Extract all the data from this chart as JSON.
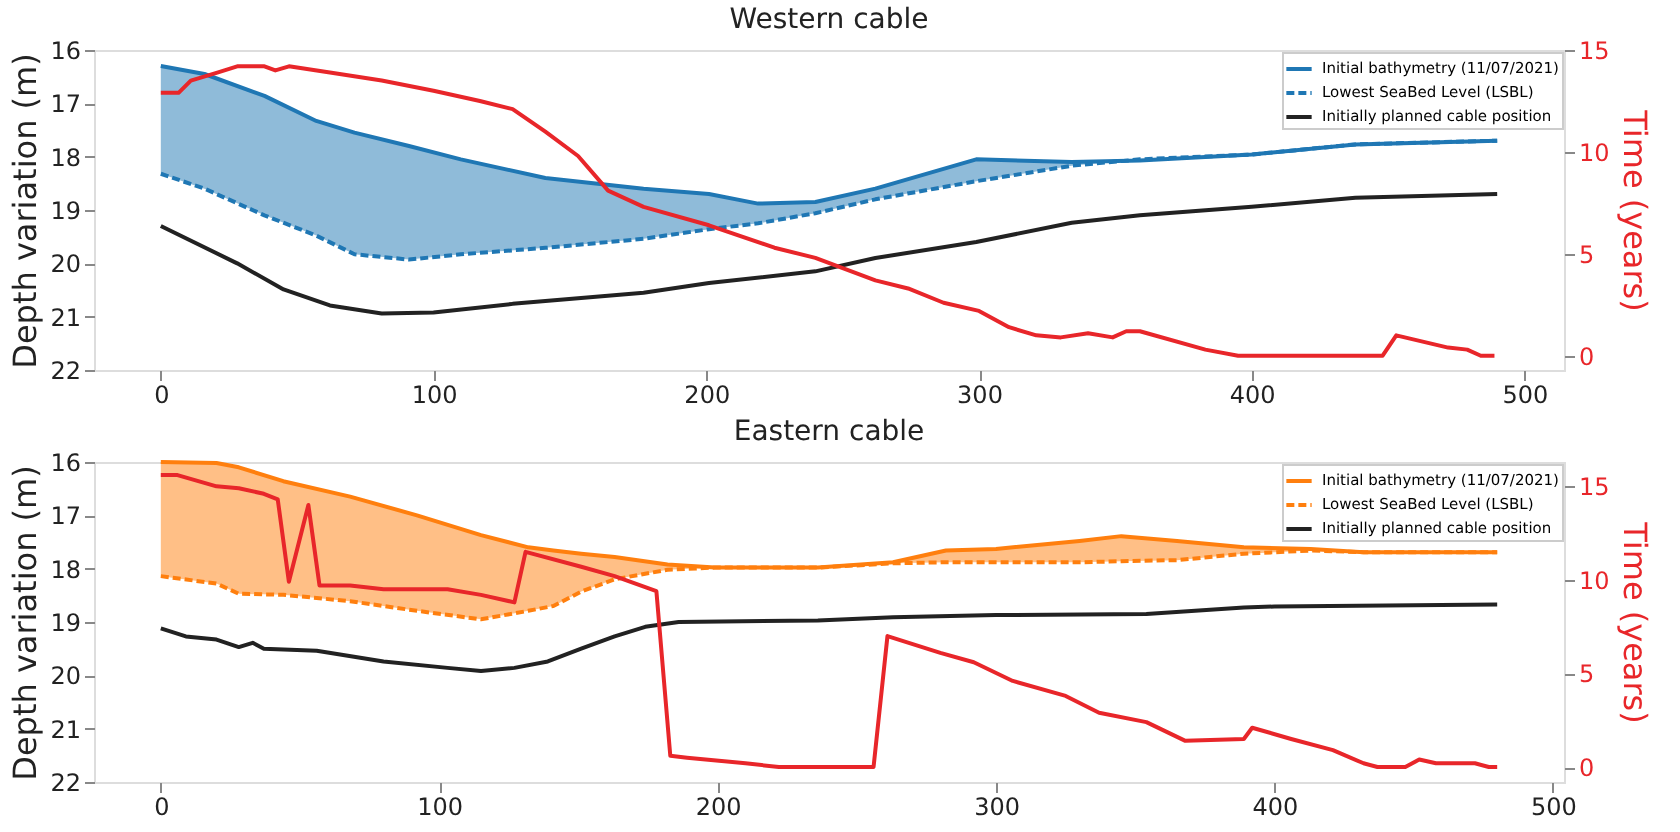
{
  "chart_data": [
    {
      "type": "line",
      "title": "Western cable",
      "ylabel": "Depth variation (m)",
      "y2label": "Time (years)",
      "xlim": [
        -24.5,
        514.5
      ],
      "xticks": [
        0,
        100,
        200,
        300,
        400,
        500
      ],
      "ylim": [
        22,
        16
      ],
      "yticks": [
        16,
        17,
        18,
        19,
        20,
        21,
        22
      ],
      "y2lim": [
        -0.7,
        15.0
      ],
      "y2ticks": [
        0,
        5,
        10,
        15
      ],
      "legend": "top right",
      "grid": false,
      "series": [
        {
          "name": "Initial bathymetry (11/07/2021)",
          "color": "#1f77b4",
          "line_style": "solid",
          "x": [
            0,
            16,
            38,
            57,
            71,
            91,
            110,
            141,
            177,
            201,
            219,
            240,
            262,
            299,
            334,
            359,
            400,
            438,
            490
          ],
          "values": [
            16.3,
            16.45,
            16.86,
            17.33,
            17.55,
            17.8,
            18.05,
            18.4,
            18.6,
            18.7,
            18.88,
            18.85,
            18.6,
            18.05,
            18.1,
            18.07,
            17.96,
            17.77,
            17.7
          ],
          "lower": [
            18.32,
            18.6,
            19.1,
            19.48,
            19.83,
            19.93,
            19.83,
            19.71,
            19.54,
            19.36,
            19.25,
            19.06,
            18.8,
            18.46,
            18.17,
            18.05,
            17.96,
            17.77,
            17.7
          ],
          "upper": [
            16.3,
            16.45,
            16.86,
            17.33,
            17.55,
            17.8,
            18.05,
            18.4,
            18.6,
            18.7,
            18.88,
            18.85,
            18.6,
            18.05,
            18.1,
            18.07,
            17.96,
            17.77,
            17.7
          ]
        },
        {
          "name": "Lowest SeaBed Level (LSBL)",
          "color": "#1f77b4",
          "line_style": "dashed",
          "x": [
            0,
            16,
            38,
            57,
            71,
            91,
            110,
            141,
            177,
            201,
            219,
            240,
            262,
            299,
            334,
            359,
            400,
            438,
            490
          ],
          "values": [
            18.32,
            18.6,
            19.1,
            19.48,
            19.83,
            19.93,
            19.83,
            19.71,
            19.54,
            19.36,
            19.25,
            19.06,
            18.8,
            18.46,
            18.17,
            18.05,
            17.96,
            17.77,
            17.7
          ]
        },
        {
          "name": "Initially planned cable position",
          "color": "#222222",
          "line_style": "solid",
          "x": [
            0,
            28,
            45,
            62,
            81,
            100,
            129,
            177,
            201,
            240,
            262,
            299,
            334,
            359,
            400,
            438,
            490
          ],
          "values": [
            19.3,
            20.0,
            20.49,
            20.79,
            20.94,
            20.92,
            20.76,
            20.55,
            20.37,
            20.15,
            19.9,
            19.6,
            19.24,
            19.1,
            18.94,
            18.77,
            18.7
          ]
        },
        {
          "color": "#e8262a",
          "line_style": "solid",
          "axis": "y2",
          "x": [
            0,
            6.5,
            11,
            21,
            28,
            38,
            42,
            47,
            62,
            81,
            100,
            117,
            129,
            141,
            153,
            164,
            177,
            201,
            225,
            240,
            262,
            274,
            287,
            300,
            311,
            321,
            330,
            340,
            349,
            354,
            359,
            383,
            395,
            448,
            453,
            472,
            479,
            484,
            489
          ],
          "values": [
            12.9,
            12.9,
            13.5,
            13.9,
            14.2,
            14.2,
            14.0,
            14.2,
            13.9,
            13.5,
            13.0,
            12.5,
            12.1,
            11.0,
            9.8,
            8.1,
            7.3,
            6.4,
            5.3,
            4.8,
            3.7,
            3.3,
            2.6,
            2.2,
            1.4,
            1.0,
            0.9,
            1.1,
            0.9,
            1.2,
            1.2,
            0.3,
            0,
            0,
            1.0,
            0.4,
            0.3,
            0,
            0
          ]
        }
      ]
    },
    {
      "type": "line",
      "title": "Eastern cable",
      "ylabel": "Depth variation (m)",
      "y2label": "Time (years)",
      "xlim": [
        -24,
        504
      ],
      "xticks": [
        0,
        100,
        200,
        300,
        400,
        500
      ],
      "ylim": [
        22,
        16
      ],
      "yticks": [
        16,
        17,
        18,
        19,
        20,
        21,
        22
      ],
      "y2lim": [
        -0.8,
        16.3
      ],
      "y2ticks": [
        0,
        5,
        10,
        15
      ],
      "legend": "top right",
      "grid": false,
      "series": [
        {
          "name": "Initial bathymetry (11/07/2021)",
          "color": "#ff7f0e",
          "line_style": "solid",
          "x": [
            0,
            20,
            28,
            44,
            68,
            92,
            115,
            132,
            141,
            151,
            163,
            182,
            199,
            236,
            263,
            282,
            300,
            330,
            345,
            365,
            389,
            413,
            432,
            480
          ],
          "values": [
            16.0,
            16.02,
            16.1,
            16.36,
            16.65,
            17.0,
            17.37,
            17.6,
            17.66,
            17.72,
            17.78,
            17.92,
            17.98,
            17.98,
            17.88,
            17.66,
            17.63,
            17.48,
            17.39,
            17.48,
            17.6,
            17.63,
            17.69,
            17.69
          ],
          "lower": [
            18.14,
            18.28,
            18.47,
            18.49,
            18.61,
            18.79,
            18.95,
            18.79,
            18.7,
            18.43,
            18.2,
            18.02,
            17.98,
            17.98,
            17.9,
            17.88,
            17.88,
            17.88,
            17.86,
            17.84,
            17.72,
            17.66,
            17.69,
            17.69
          ],
          "upper": [
            16.0,
            16.02,
            16.1,
            16.36,
            16.65,
            17.0,
            17.37,
            17.6,
            17.66,
            17.72,
            17.78,
            17.92,
            17.98,
            17.98,
            17.88,
            17.66,
            17.63,
            17.48,
            17.39,
            17.48,
            17.6,
            17.63,
            17.69,
            17.69
          ]
        },
        {
          "name": "Lowest SeaBed Level (LSBL)",
          "color": "#ff7f0e",
          "line_style": "dashed",
          "x": [
            0,
            20,
            28,
            44,
            68,
            92,
            115,
            132,
            141,
            151,
            163,
            182,
            199,
            236,
            263,
            282,
            300,
            330,
            345,
            365,
            389,
            413,
            432,
            480
          ],
          "values": [
            18.14,
            18.28,
            18.47,
            18.49,
            18.61,
            18.79,
            18.95,
            18.79,
            18.7,
            18.43,
            18.2,
            18.02,
            17.98,
            17.98,
            17.9,
            17.88,
            17.88,
            17.88,
            17.86,
            17.84,
            17.72,
            17.66,
            17.69,
            17.69
          ]
        },
        {
          "name": "Initially planned cable position",
          "color": "#222222",
          "line_style": "solid",
          "x": [
            0,
            9,
            20,
            28,
            33,
            37,
            56,
            80,
            103,
            115,
            127,
            139,
            151,
            163,
            174,
            186,
            236,
            263,
            300,
            354,
            389,
            400,
            480
          ],
          "values": [
            19.12,
            19.27,
            19.33,
            19.47,
            19.39,
            19.5,
            19.54,
            19.74,
            19.86,
            19.92,
            19.86,
            19.74,
            19.5,
            19.27,
            19.09,
            19.0,
            18.97,
            18.91,
            18.87,
            18.85,
            18.73,
            18.71,
            18.67
          ]
        },
        {
          "color": "#e8262a",
          "line_style": "solid",
          "axis": "y2",
          "x": [
            0,
            6,
            20,
            28,
            37,
            42,
            46,
            53,
            57,
            68,
            80,
            103,
            115,
            127,
            131,
            151,
            163,
            178,
            183,
            189,
            210,
            222,
            256,
            261,
            280,
            292,
            306,
            325,
            337,
            354,
            368,
            389,
            392,
            406,
            421,
            432,
            437,
            447,
            452,
            458,
            472,
            477,
            480
          ],
          "values": [
            15.6,
            15.6,
            15.0,
            14.9,
            14.6,
            14.3,
            9.9,
            14.0,
            9.7,
            9.7,
            9.5,
            9.5,
            9.2,
            8.8,
            11.5,
            10.7,
            10.2,
            9.4,
            0.6,
            0.5,
            0.2,
            0,
            0,
            7.0,
            6.1,
            5.6,
            4.6,
            3.8,
            2.9,
            2.4,
            1.4,
            1.5,
            2.1,
            1.5,
            0.9,
            0.2,
            0,
            0,
            0.4,
            0.2,
            0.2,
            0,
            0
          ]
        }
      ]
    }
  ]
}
